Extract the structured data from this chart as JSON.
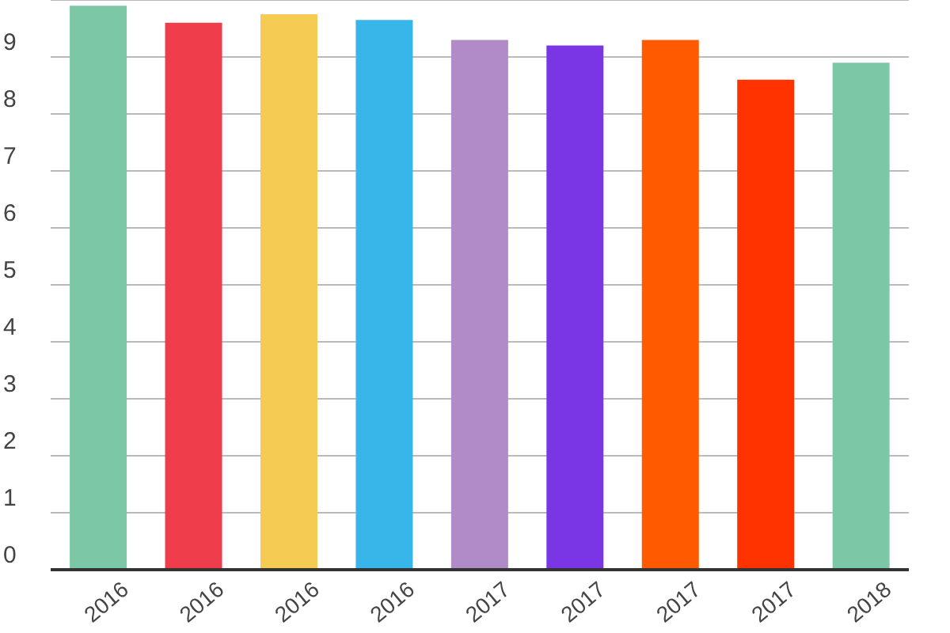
{
  "chart_data": {
    "type": "bar",
    "categories": [
      "2016",
      "2016",
      "2016",
      "2016",
      "2017",
      "2017",
      "2017",
      "2017",
      "2018"
    ],
    "values": [
      9.9,
      9.6,
      9.75,
      9.65,
      9.3,
      9.2,
      9.3,
      8.6,
      8.9
    ],
    "colors": [
      "#7cc8a6",
      "#ef3d4b",
      "#f5cb53",
      "#38b6ea",
      "#b08bc8",
      "#7a35e4",
      "#ff5a00",
      "#ff3300",
      "#7cc8a6"
    ],
    "ylim": [
      0,
      10
    ],
    "yticks": [
      0,
      1,
      2,
      3,
      4,
      5,
      6,
      7,
      8,
      9
    ],
    "grid": "y"
  }
}
